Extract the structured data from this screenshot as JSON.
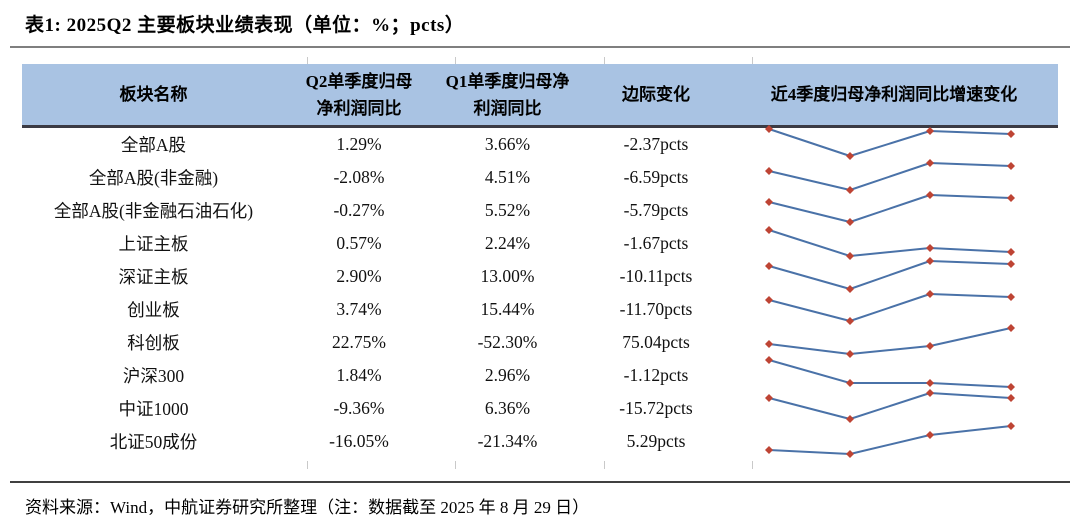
{
  "title": "表1: 2025Q2 主要板块业绩表现（单位：%；pcts）",
  "colors": {
    "header_bg": "#A9C3E3",
    "header_rule": "#3B3B44",
    "title_rule": "#7F7F7F",
    "spark_line": "#4A72A8",
    "spark_marker": "#BE4434"
  },
  "table": {
    "headers": [
      "板块名称",
      "Q2单季度归母\n净利润同比",
      "Q1单季度归母净\n利润同比",
      "边际变化",
      "近4季度归母净利润同比增速变化"
    ],
    "rows": [
      {
        "name": "全部A股",
        "q2": "1.29%",
        "q1": "3.66%",
        "delta": "-2.37pcts",
        "spark": [
          33,
          6,
          31,
          28
        ]
      },
      {
        "name": "全部A股(非金融)",
        "q2": "-2.08%",
        "q1": "4.51%",
        "delta": "-6.59pcts",
        "spark": [
          24,
          5,
          32,
          29
        ]
      },
      {
        "name": "全部A股(非金融石油石化)",
        "q2": "-0.27%",
        "q1": "5.52%",
        "delta": "-5.79pcts",
        "spark": [
          26,
          6,
          33,
          30
        ]
      },
      {
        "name": "上证主板",
        "q2": "0.57%",
        "q1": "2.24%",
        "delta": "-1.67pcts",
        "spark": [
          31,
          5,
          13,
          9
        ]
      },
      {
        "name": "深证主板",
        "q2": "2.90%",
        "q1": "13.00%",
        "delta": "-10.11pcts",
        "spark": [
          28,
          5,
          33,
          30
        ]
      },
      {
        "name": "创业板",
        "q2": "3.74%",
        "q1": "15.44%",
        "delta": "-11.70pcts",
        "spark": [
          27,
          6,
          33,
          30
        ]
      },
      {
        "name": "科创板",
        "q2": "22.75%",
        "q1": "-52.30%",
        "delta": "75.04pcts",
        "spark": [
          16,
          6,
          14,
          32
        ]
      },
      {
        "name": "沪深300",
        "q2": "1.84%",
        "q1": "2.96%",
        "delta": "-1.12pcts",
        "spark": [
          33,
          10,
          10,
          6
        ]
      },
      {
        "name": "中证1000",
        "q2": "-9.36%",
        "q1": "6.36%",
        "delta": "-15.72pcts",
        "spark": [
          28,
          7,
          33,
          28
        ]
      },
      {
        "name": "北证50成份",
        "q2": "-16.05%",
        "q1": "-21.34%",
        "delta": "5.29pcts",
        "spark": [
          9,
          5,
          24,
          33
        ]
      }
    ]
  },
  "chart_data": {
    "type": "line",
    "title": "近4季度归母净利润同比增速变化（行内迷你折线图，无坐标轴标签）",
    "x": [
      1,
      2,
      3,
      4
    ],
    "note": "values are relative vertical positions read from pixels (0=low, 33=high); no axis labels shown",
    "series": [
      {
        "name": "全部A股",
        "values": [
          33,
          6,
          31,
          28
        ]
      },
      {
        "name": "全部A股(非金融)",
        "values": [
          24,
          5,
          32,
          29
        ]
      },
      {
        "name": "全部A股(非金融石油石化)",
        "values": [
          26,
          6,
          33,
          30
        ]
      },
      {
        "name": "上证主板",
        "values": [
          31,
          5,
          13,
          9
        ]
      },
      {
        "name": "深证主板",
        "values": [
          28,
          5,
          33,
          30
        ]
      },
      {
        "name": "创业板",
        "values": [
          27,
          6,
          33,
          30
        ]
      },
      {
        "name": "科创板",
        "values": [
          16,
          6,
          14,
          32
        ]
      },
      {
        "name": "沪深300",
        "values": [
          33,
          10,
          10,
          6
        ]
      },
      {
        "name": "中证1000",
        "values": [
          28,
          7,
          33,
          28
        ]
      },
      {
        "name": "北证50成份",
        "values": [
          9,
          5,
          24,
          33
        ]
      }
    ],
    "legend_position": "none",
    "grid": false
  },
  "footer": {
    "source_note": "资料来源：Wind，中航证券研究所整理（注：数据截至 2025 年 8 月 29 日）"
  }
}
